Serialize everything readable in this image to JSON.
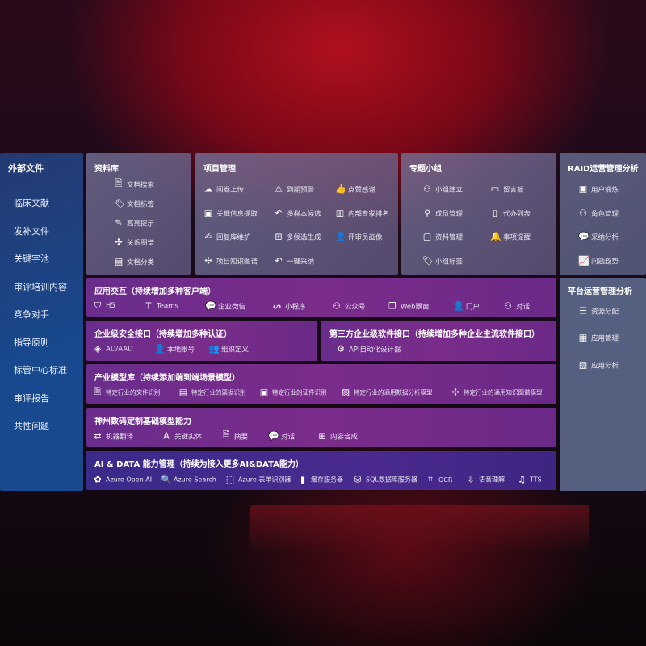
{
  "sidebar": {
    "title": "外部文件",
    "items": [
      "临床文献",
      "发补文件",
      "关键字池",
      "审评培训内容",
      "竞争对手",
      "指导原则",
      "标管中心标准",
      "审评报告",
      "共性问题"
    ]
  },
  "library": {
    "title": "资料库",
    "items": [
      {
        "icon": "doc-search-icon",
        "label": "文档搜索"
      },
      {
        "icon": "tag-icon",
        "label": "文档标签"
      },
      {
        "icon": "pen-icon",
        "label": "高亮提示"
      },
      {
        "icon": "graph-icon",
        "label": "关系图谱"
      },
      {
        "icon": "doc-classify-icon",
        "label": "文档分类"
      }
    ]
  },
  "project": {
    "title": "项目管理",
    "items": [
      {
        "icon": "cloud-upload-icon",
        "label": "问卷上传"
      },
      {
        "icon": "alarm-icon",
        "label": "到期预警"
      },
      {
        "icon": "thumbs-up-icon",
        "label": "点赞感谢"
      },
      {
        "icon": "info-extract-icon",
        "label": "关键信息提取"
      },
      {
        "icon": "reply-icon",
        "label": "多样本候选"
      },
      {
        "icon": "ranking-icon",
        "label": "内部专家排名"
      },
      {
        "icon": "edit-icon",
        "label": "回复库维护"
      },
      {
        "icon": "puzzle-icon",
        "label": "多候选生成"
      },
      {
        "icon": "user-icon",
        "label": "评审员画像"
      },
      {
        "icon": "graph-icon",
        "label": "项目知识图谱"
      },
      {
        "icon": "reply-icon",
        "label": "一键采纳"
      }
    ]
  },
  "group": {
    "title": "专题小组",
    "items": [
      {
        "icon": "users-icon",
        "label": "小组建立"
      },
      {
        "icon": "bbs-icon",
        "label": "留言板"
      },
      {
        "icon": "user-add-icon",
        "label": "成员管理"
      },
      {
        "icon": "clipboard-icon",
        "label": "代办列表"
      },
      {
        "icon": "folder-icon",
        "label": "资料管理"
      },
      {
        "icon": "bell-icon",
        "label": "事项提醒"
      },
      {
        "icon": "tag-icon",
        "label": "小组标签"
      }
    ]
  },
  "raid": {
    "title": "RAID运营管理分析",
    "items": [
      {
        "icon": "id-card-icon",
        "label": "用户锻炼"
      },
      {
        "icon": "users-icon",
        "label": "角色管理"
      },
      {
        "icon": "qa-icon",
        "label": "采纳分析"
      },
      {
        "icon": "trend-icon",
        "label": "问题趋势"
      }
    ]
  },
  "platform": {
    "title": "平台运营管理分析",
    "items": [
      {
        "icon": "checklist-icon",
        "label": "资源分配"
      },
      {
        "icon": "apps-icon",
        "label": "应用管理"
      },
      {
        "icon": "chart-icon",
        "label": "应用分析"
      }
    ]
  },
  "interaction": {
    "title": "应用交互（持续增加多种客户端）",
    "items": [
      {
        "icon": "html5-icon",
        "label": "H5"
      },
      {
        "icon": "teams-icon",
        "label": "Teams"
      },
      {
        "icon": "wechat-icon",
        "label": "企业微信"
      },
      {
        "icon": "miniprogram-icon",
        "label": "小程序"
      },
      {
        "icon": "public-account-icon",
        "label": "公众号"
      },
      {
        "icon": "window-icon",
        "label": "Web飘窗"
      },
      {
        "icon": "portal-icon",
        "label": "门户"
      },
      {
        "icon": "chat-users-icon",
        "label": "对话"
      }
    ]
  },
  "security": {
    "title": "企业级安全接口（持续增加多种认证）",
    "items": [
      {
        "icon": "ad-icon",
        "label": "AD/AAD"
      },
      {
        "icon": "local-account-icon",
        "label": "本地账号"
      },
      {
        "icon": "org-icon",
        "label": "组织定义"
      }
    ]
  },
  "thirdparty": {
    "title": "第三方企业级软件接口（持续增加多种企业主流软件接口）",
    "items": [
      {
        "icon": "api-gear-icon",
        "label": "API自动化设计器"
      }
    ]
  },
  "industry": {
    "title": "产业模型库（持续添加端到端场景模型）",
    "items": [
      {
        "icon": "file-icon",
        "label": "特定行业的文件识别"
      },
      {
        "icon": "receipt-icon",
        "label": "特定行业的票据识别"
      },
      {
        "icon": "id-card-icon",
        "label": "特定行业的证件识别"
      },
      {
        "icon": "image-chart-icon",
        "label": "特定行业的通用数据分析模型"
      },
      {
        "icon": "graph-icon",
        "label": "特定行业的通用知识图谱模型"
      }
    ]
  },
  "base": {
    "title": "神州数码定制基础模型能力",
    "items": [
      {
        "icon": "translate-icon",
        "label": "机器翻译"
      },
      {
        "icon": "entity-icon",
        "label": "关键实体"
      },
      {
        "icon": "summary-icon",
        "label": "摘要"
      },
      {
        "icon": "chat-icon",
        "label": "对话"
      },
      {
        "icon": "puzzle-icon",
        "label": "内容合成"
      }
    ]
  },
  "ai": {
    "title": "AI & DATA 能力管理（持续为接入更多AI&DATA能力）",
    "items": [
      {
        "icon": "openai-icon",
        "label": "Azure Open AI"
      },
      {
        "icon": "search-doc-icon",
        "label": "Azure Search"
      },
      {
        "icon": "form-recognizer-icon",
        "label": "Azure 表单识别器"
      },
      {
        "icon": "cache-server-icon",
        "label": "缓存服务器"
      },
      {
        "icon": "sql-icon",
        "label": "SQL数据库服务器"
      },
      {
        "icon": "ocr-icon",
        "label": "OCR"
      },
      {
        "icon": "speech-icon",
        "label": "语音理解"
      },
      {
        "icon": "tts-icon",
        "label": "TTS"
      }
    ]
  }
}
